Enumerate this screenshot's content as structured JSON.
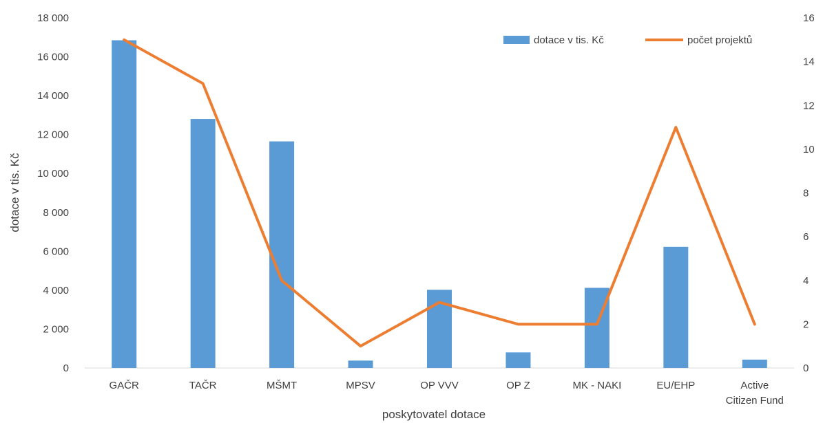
{
  "chart_data": {
    "type": "bar",
    "categories": [
      [
        "GAČR"
      ],
      [
        "TAČR"
      ],
      [
        "MŠMT"
      ],
      [
        "MPSV"
      ],
      [
        "OP VVV"
      ],
      [
        "OP Z"
      ],
      [
        "MK - NAKI"
      ],
      [
        "EU/EHP"
      ],
      [
        "Active",
        "Citizen Fund"
      ]
    ],
    "series": [
      {
        "name": "dotace v tis. Kč",
        "type": "bar",
        "axis": "left",
        "color": "#5b9bd5",
        "values": [
          16850,
          12800,
          11650,
          380,
          4020,
          800,
          4120,
          6230,
          430
        ]
      },
      {
        "name": "počet projektů",
        "type": "line",
        "axis": "right",
        "color": "#ed7d31",
        "values": [
          15,
          13,
          4,
          1,
          3,
          2,
          2,
          11,
          2
        ]
      }
    ],
    "xlabel": "poskytovatel dotace",
    "ylabel": "dotace v tis. Kč",
    "ylim": [
      0,
      18000
    ],
    "y_ticks": [
      "0",
      "2 000",
      "4 000",
      "6 000",
      "8 000",
      "10 000",
      "12 000",
      "14 000",
      "16 000",
      "18 000"
    ],
    "y2lim": [
      0,
      16
    ],
    "y2_ticks": [
      "0",
      "2",
      "4",
      "6",
      "8",
      "10",
      "12",
      "14",
      "16"
    ],
    "grid": false,
    "legend_position": "top-right"
  }
}
